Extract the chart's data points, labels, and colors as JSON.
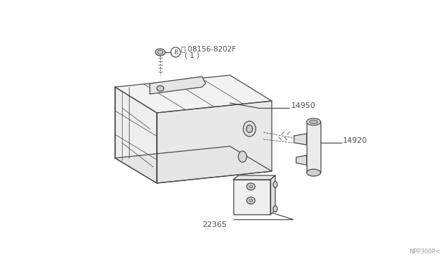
{
  "bg_color": "#ffffff",
  "line_color": "#4a4a4a",
  "watermark": "NPP300P<",
  "bolt_label1": "Ⓑ 08156-8202F",
  "bolt_label2": "( 1 )",
  "part1": "14950",
  "part2": "14920",
  "part3": "22365",
  "figsize": [
    6.4,
    3.72
  ],
  "dpi": 100
}
